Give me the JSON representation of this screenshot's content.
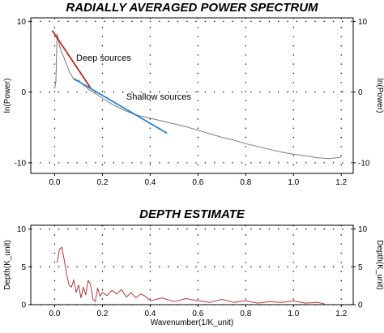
{
  "chart_data": [
    {
      "type": "line",
      "title": "RADIALLY AVERAGED POWER SPECTRUM",
      "ylabel": "ln(Power)",
      "ylabel_right": "ln(Power)",
      "xlim": [
        -0.1,
        1.25
      ],
      "ylim": [
        -11.5,
        10.5
      ],
      "xticks": [
        0.0,
        0.2,
        0.4,
        0.6,
        0.8,
        1.0,
        1.2
      ],
      "xtick_labels": [
        "0.0",
        "0.2",
        "0.4",
        "0.6",
        "0.8",
        "1.0",
        "1.2"
      ],
      "yticks": [
        10,
        0,
        -10
      ],
      "ytick_labels": [
        "10",
        "0",
        "-10"
      ],
      "grid": true,
      "series": [
        {
          "color": "#7a7a7a",
          "x": [
            0.0,
            0.005,
            0.01,
            0.015,
            0.02,
            0.03,
            0.04,
            0.05,
            0.06,
            0.07,
            0.08,
            0.09,
            0.1,
            0.11,
            0.12,
            0.13,
            0.14,
            0.15,
            0.16,
            0.18,
            0.2,
            0.22,
            0.25,
            0.28,
            0.3,
            0.33,
            0.36,
            0.4,
            0.45,
            0.5,
            0.55,
            0.6,
            0.65,
            0.7,
            0.75,
            0.8,
            0.85,
            0.9,
            0.95,
            1.0,
            1.05,
            1.1,
            1.15,
            1.18,
            1.2
          ],
          "y": [
            0.5,
            1.5,
            8.2,
            7.6,
            6.5,
            5.6,
            4.8,
            3.9,
            3.0,
            2.4,
            1.8,
            1.6,
            1.7,
            1.3,
            1.0,
            0.8,
            0.4,
            0.2,
            0.0,
            -0.4,
            -0.9,
            -1.3,
            -1.9,
            -2.4,
            -2.7,
            -3.1,
            -3.4,
            -3.7,
            -4.1,
            -4.5,
            -4.9,
            -5.4,
            -5.9,
            -6.4,
            -6.8,
            -7.3,
            -7.7,
            -8.1,
            -8.5,
            -8.8,
            -9.0,
            -9.3,
            -9.4,
            -9.3,
            -9.2
          ]
        },
        {
          "name": "Deep sources",
          "color": "#cc2020",
          "x": [
            -0.01,
            0.15
          ],
          "y": [
            8.7,
            0.6
          ]
        },
        {
          "name": "Shallow sources",
          "color": "#2a84d2",
          "x": [
            0.08,
            0.47
          ],
          "y": [
            1.9,
            -5.8
          ]
        }
      ],
      "annotations": [
        {
          "text": "Deep sources",
          "x": 0.09,
          "y": 4.4
        },
        {
          "text": "Shallow sources",
          "x": 0.3,
          "y": -1.1
        }
      ]
    },
    {
      "type": "line",
      "title": "DEPTH ESTIMATE",
      "ylabel": "Depth(K_unit)",
      "ylabel_right": "Depth(K_unit)",
      "xlabel": "Wavenumber(1/K_unit)",
      "xlim": [
        -0.1,
        1.25
      ],
      "ylim": [
        0,
        10.5
      ],
      "xticks": [
        0.0,
        0.2,
        0.4,
        0.6,
        0.8,
        1.0,
        1.2
      ],
      "xtick_labels": [
        "0.0",
        "0.2",
        "0.4",
        "0.6",
        "0.8",
        "1.0",
        "1.2"
      ],
      "yticks": [
        10,
        5,
        0
      ],
      "ytick_labels": [
        "10",
        "5",
        "0"
      ],
      "grid": true,
      "series": [
        {
          "color": "#b23a3a",
          "x": [
            0.01,
            0.02,
            0.03,
            0.04,
            0.05,
            0.06,
            0.07,
            0.08,
            0.09,
            0.1,
            0.11,
            0.12,
            0.13,
            0.14,
            0.15,
            0.16,
            0.17,
            0.18,
            0.19,
            0.2,
            0.22,
            0.24,
            0.26,
            0.28,
            0.3,
            0.32,
            0.34,
            0.36,
            0.38,
            0.4,
            0.45,
            0.5,
            0.55,
            0.6,
            0.65,
            0.7,
            0.75,
            0.8,
            0.85,
            0.9,
            0.95,
            1.0,
            1.05,
            1.1,
            1.13
          ],
          "y": [
            5.5,
            7.3,
            7.6,
            5.9,
            4.0,
            2.6,
            2.3,
            3.3,
            1.6,
            2.6,
            0.9,
            2.3,
            1.3,
            3.2,
            2.7,
            0.7,
            0.4,
            2.2,
            1.1,
            1.6,
            1.2,
            1.9,
            1.4,
            2.0,
            1.0,
            1.6,
            0.9,
            1.4,
            1.1,
            0.5,
            0.9,
            0.4,
            0.8,
            0.5,
            0.3,
            0.7,
            0.3,
            0.5,
            0.2,
            0.4,
            0.3,
            0.5,
            0.2,
            0.3,
            0.1
          ]
        }
      ]
    }
  ]
}
